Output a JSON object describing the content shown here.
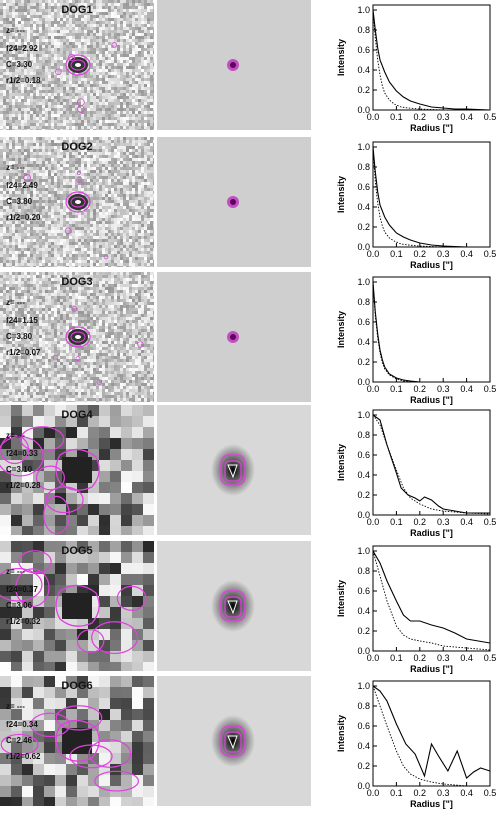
{
  "figure": {
    "rows": [
      {
        "title": "DOG1",
        "z": "z= ---",
        "f24": "f24=2.92",
        "c": "C=3.30",
        "r": "r1/2=0.18",
        "noise": "fine"
      },
      {
        "title": "DOG2",
        "z": "z= ---",
        "f24": "f24=2.49",
        "c": "C=3.80",
        "r": "r1/2=0.20",
        "noise": "fine"
      },
      {
        "title": "DOG3",
        "z": "z= ---",
        "f24": "f24=1.15",
        "c": "C=3.80",
        "r": "r1/2=0.07",
        "noise": "fine"
      },
      {
        "title": "DOG4",
        "z": "z= ---",
        "f24": "f24=0.33",
        "c": "C=3.10",
        "r": "r1/2=0.28",
        "noise": "coarse"
      },
      {
        "title": "DOG5",
        "z": "z= ---",
        "f24": "f24=0.37",
        "c": "C=3.06",
        "r": "r1/2=0.32",
        "noise": "coarse"
      },
      {
        "title": "DOG6",
        "z": "z= ---",
        "f24": "f24=0.34",
        "c": "C=2.46",
        "r": "r1/2=0.62",
        "noise": "coarse"
      }
    ]
  },
  "chart_data": [
    {
      "type": "line",
      "xlabel": "Radius [\"]",
      "ylabel": "Intensity",
      "xlim": [
        0,
        0.5
      ],
      "ylim": [
        0,
        1.05
      ],
      "xticks": [
        "0.0",
        "0.1",
        "0.2",
        "0.3",
        "0.4",
        "0.5"
      ],
      "yticks": [
        "0.0",
        "0.2",
        "0.4",
        "0.6",
        "0.8",
        "1.0"
      ],
      "series": [
        {
          "style": "solid",
          "x": [
            0.0,
            0.01,
            0.02,
            0.03,
            0.05,
            0.07,
            0.1,
            0.13,
            0.16,
            0.2,
            0.25,
            0.3,
            0.35,
            0.4,
            0.5
          ],
          "y": [
            1.0,
            0.8,
            0.62,
            0.5,
            0.38,
            0.28,
            0.19,
            0.13,
            0.09,
            0.06,
            0.03,
            0.02,
            0.01,
            0.01,
            0.0
          ]
        },
        {
          "style": "dotted",
          "x": [
            0.0,
            0.01,
            0.02,
            0.03,
            0.04,
            0.05,
            0.07,
            0.09,
            0.12,
            0.15,
            0.2,
            0.3,
            0.5
          ],
          "y": [
            1.0,
            0.72,
            0.5,
            0.35,
            0.24,
            0.17,
            0.1,
            0.06,
            0.03,
            0.02,
            0.01,
            0.0,
            0.0
          ]
        }
      ]
    },
    {
      "type": "line",
      "xlabel": "Radius [\"]",
      "ylabel": "Intensity",
      "xlim": [
        0,
        0.5
      ],
      "ylim": [
        0,
        1.05
      ],
      "xticks": [
        "0.0",
        "0.1",
        "0.2",
        "0.3",
        "0.4",
        "0.5"
      ],
      "yticks": [
        "0.0",
        "0.2",
        "0.4",
        "0.6",
        "0.8",
        "1.0"
      ],
      "series": [
        {
          "style": "solid",
          "x": [
            0.0,
            0.01,
            0.02,
            0.03,
            0.05,
            0.07,
            0.1,
            0.13,
            0.16,
            0.2,
            0.25,
            0.3,
            0.4,
            0.5
          ],
          "y": [
            1.0,
            0.75,
            0.55,
            0.42,
            0.3,
            0.22,
            0.14,
            0.1,
            0.07,
            0.04,
            0.02,
            0.01,
            0.0,
            0.0
          ]
        },
        {
          "style": "dotted",
          "x": [
            0.0,
            0.01,
            0.02,
            0.03,
            0.04,
            0.05,
            0.07,
            0.09,
            0.12,
            0.15,
            0.2,
            0.3,
            0.5
          ],
          "y": [
            1.0,
            0.65,
            0.44,
            0.3,
            0.21,
            0.15,
            0.09,
            0.06,
            0.03,
            0.02,
            0.01,
            0.0,
            0.0
          ]
        }
      ]
    },
    {
      "type": "line",
      "xlabel": "Radius [\"]",
      "ylabel": "Intensity",
      "xlim": [
        0,
        0.5
      ],
      "ylim": [
        0,
        1.05
      ],
      "xticks": [
        "0.0",
        "0.1",
        "0.2",
        "0.3",
        "0.4",
        "0.5"
      ],
      "yticks": [
        "0.0",
        "0.2",
        "0.4",
        "0.6",
        "0.8",
        "1.0"
      ],
      "series": [
        {
          "style": "solid",
          "x": [
            0.0,
            0.01,
            0.02,
            0.03,
            0.04,
            0.05,
            0.07,
            0.1,
            0.13,
            0.16,
            0.2,
            0.3,
            0.5
          ],
          "y": [
            1.0,
            0.7,
            0.48,
            0.32,
            0.22,
            0.15,
            0.08,
            0.04,
            0.02,
            0.01,
            0.0,
            0.0,
            0.0
          ]
        },
        {
          "style": "dotted",
          "x": [
            0.0,
            0.01,
            0.02,
            0.03,
            0.04,
            0.05,
            0.07,
            0.1,
            0.13,
            0.2,
            0.5
          ],
          "y": [
            1.0,
            0.66,
            0.44,
            0.29,
            0.19,
            0.13,
            0.07,
            0.03,
            0.01,
            0.0,
            0.0
          ]
        }
      ]
    },
    {
      "type": "line",
      "xlabel": "Radius [\"]",
      "ylabel": "Intensity",
      "xlim": [
        0,
        0.5
      ],
      "ylim": [
        0,
        1.05
      ],
      "xticks": [
        "0.0",
        "0.1",
        "0.2",
        "0.3",
        "0.4",
        "0.5"
      ],
      "yticks": [
        "0.0",
        "0.2",
        "0.4",
        "0.6",
        "0.8",
        "1.0"
      ],
      "series": [
        {
          "style": "solid",
          "x": [
            0.0,
            0.03,
            0.06,
            0.1,
            0.12,
            0.15,
            0.18,
            0.2,
            0.22,
            0.25,
            0.28,
            0.3,
            0.35,
            0.4,
            0.45,
            0.5
          ],
          "y": [
            1.0,
            0.95,
            0.7,
            0.42,
            0.27,
            0.2,
            0.17,
            0.14,
            0.18,
            0.15,
            0.09,
            0.06,
            0.04,
            0.02,
            0.02,
            0.02
          ]
        },
        {
          "style": "dotted",
          "x": [
            0.0,
            0.03,
            0.06,
            0.1,
            0.13,
            0.16,
            0.2,
            0.25,
            0.3,
            0.35,
            0.4,
            0.5
          ],
          "y": [
            1.0,
            0.9,
            0.7,
            0.45,
            0.27,
            0.17,
            0.11,
            0.06,
            0.04,
            0.03,
            0.02,
            0.01
          ]
        }
      ]
    },
    {
      "type": "line",
      "xlabel": "Radius [\"]",
      "ylabel": "Intensity",
      "xlim": [
        0,
        0.5
      ],
      "ylim": [
        0,
        1.05
      ],
      "xticks": [
        "0.0",
        "0.1",
        "0.2",
        "0.3",
        "0.4",
        "0.5"
      ],
      "yticks": [
        "0.0",
        "0.2",
        "0.4",
        "0.6",
        "0.8",
        "1.0"
      ],
      "series": [
        {
          "style": "solid",
          "x": [
            0.0,
            0.03,
            0.06,
            0.1,
            0.13,
            0.16,
            0.2,
            0.25,
            0.3,
            0.35,
            0.4,
            0.45,
            0.5
          ],
          "y": [
            1.0,
            0.88,
            0.7,
            0.5,
            0.36,
            0.3,
            0.3,
            0.26,
            0.23,
            0.18,
            0.12,
            0.1,
            0.08
          ]
        },
        {
          "style": "dotted",
          "x": [
            0.0,
            0.03,
            0.06,
            0.1,
            0.13,
            0.16,
            0.2,
            0.25,
            0.3,
            0.4,
            0.5
          ],
          "y": [
            1.0,
            0.75,
            0.5,
            0.25,
            0.16,
            0.12,
            0.1,
            0.08,
            0.05,
            0.03,
            0.01
          ]
        }
      ]
    },
    {
      "type": "line",
      "xlabel": "Radius [\"]",
      "ylabel": "Intensity",
      "xlim": [
        0,
        0.5
      ],
      "ylim": [
        0,
        1.05
      ],
      "xticks": [
        "0.0",
        "0.1",
        "0.2",
        "0.3",
        "0.4",
        "0.5"
      ],
      "yticks": [
        "0.0",
        "0.2",
        "0.4",
        "0.6",
        "0.8",
        "1.0"
      ],
      "series": [
        {
          "style": "solid",
          "x": [
            0.0,
            0.03,
            0.06,
            0.1,
            0.14,
            0.18,
            0.22,
            0.25,
            0.28,
            0.32,
            0.36,
            0.4,
            0.43,
            0.46,
            0.5
          ],
          "y": [
            1.0,
            0.95,
            0.85,
            0.62,
            0.42,
            0.32,
            0.1,
            0.42,
            0.3,
            0.15,
            0.35,
            0.08,
            0.14,
            0.18,
            0.15
          ]
        },
        {
          "style": "dotted",
          "x": [
            0.0,
            0.03,
            0.06,
            0.1,
            0.13,
            0.16,
            0.2,
            0.25,
            0.3,
            0.35,
            0.4,
            0.5
          ],
          "y": [
            1.0,
            0.8,
            0.6,
            0.35,
            0.2,
            0.12,
            0.07,
            0.04,
            0.02,
            0.01,
            0.0,
            0.0
          ]
        }
      ]
    }
  ]
}
